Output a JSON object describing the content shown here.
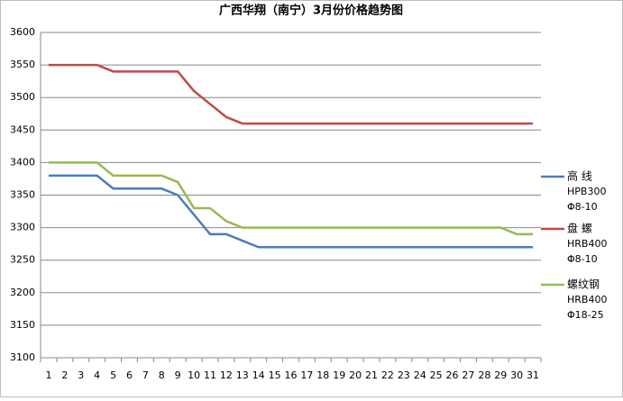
{
  "chart_data": {
    "type": "line",
    "title": "广西华翔（南宁）3月份价格趋势图",
    "categories": [
      1,
      2,
      3,
      4,
      5,
      6,
      7,
      8,
      9,
      10,
      11,
      12,
      13,
      14,
      15,
      16,
      17,
      18,
      19,
      20,
      21,
      22,
      23,
      24,
      25,
      26,
      27,
      28,
      29,
      30,
      31
    ],
    "series": [
      {
        "name": "高 线",
        "spec": [
          "HPB300",
          "Φ8-10"
        ],
        "color": "#4a7ebb",
        "values": [
          3380,
          3380,
          3380,
          3380,
          3360,
          3360,
          3360,
          3360,
          3350,
          3320,
          3290,
          3290,
          3280,
          3270,
          3270,
          3270,
          3270,
          3270,
          3270,
          3270,
          3270,
          3270,
          3270,
          3270,
          3270,
          3270,
          3270,
          3270,
          3270,
          3270,
          3270
        ]
      },
      {
        "name": "盘 螺",
        "spec": [
          "HRB400",
          "Φ8-10"
        ],
        "color": "#be4b48",
        "values": [
          3550,
          3550,
          3550,
          3550,
          3540,
          3540,
          3540,
          3540,
          3540,
          3510,
          3490,
          3470,
          3460,
          3460,
          3460,
          3460,
          3460,
          3460,
          3460,
          3460,
          3460,
          3460,
          3460,
          3460,
          3460,
          3460,
          3460,
          3460,
          3460,
          3460,
          3460
        ]
      },
      {
        "name": "螺纹钢",
        "spec": [
          "HRB400",
          "Φ18-25"
        ],
        "color": "#98b954",
        "values": [
          3400,
          3400,
          3400,
          3400,
          3380,
          3380,
          3380,
          3380,
          3370,
          3330,
          3330,
          3310,
          3300,
          3300,
          3300,
          3300,
          3300,
          3300,
          3300,
          3300,
          3300,
          3300,
          3300,
          3300,
          3300,
          3300,
          3300,
          3300,
          3300,
          3290,
          3290
        ]
      }
    ],
    "ylim": [
      3100,
      3600
    ],
    "yticks": [
      3100,
      3150,
      3200,
      3250,
      3300,
      3350,
      3400,
      3450,
      3500,
      3550,
      3600
    ],
    "grid": true
  }
}
